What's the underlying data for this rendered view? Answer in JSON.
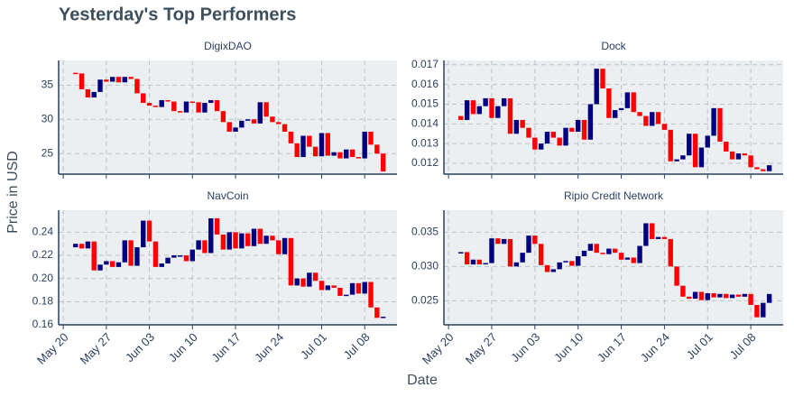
{
  "title": "Yesterday's Top Performers",
  "xlabel": "Date",
  "ylabel": "Price in USD",
  "chart_data": [
    {
      "type": "candlestick",
      "title": "DigixDAO",
      "increasing_color": "#000080",
      "decreasing_color": "#ff0000",
      "grid": true,
      "show_xticklabels": false,
      "categories": [
        "May 20",
        "May 21",
        "May 22",
        "May 23",
        "May 24",
        "May 25",
        "May 26",
        "May 27",
        "May 28",
        "May 29",
        "May 30",
        "May 31",
        "Jun 01",
        "Jun 02",
        "Jun 03",
        "Jun 04",
        "Jun 05",
        "Jun 06",
        "Jun 07",
        "Jun 08",
        "Jun 09",
        "Jun 10",
        "Jun 11",
        "Jun 12",
        "Jun 13",
        "Jun 14",
        "Jun 15",
        "Jun 16",
        "Jun 17",
        "Jun 18",
        "Jun 19",
        "Jun 20",
        "Jun 21",
        "Jun 22",
        "Jun 23",
        "Jun 24",
        "Jun 25",
        "Jun 26",
        "Jun 27",
        "Jun 28",
        "Jun 29",
        "Jun 30",
        "Jul 01",
        "Jul 02",
        "Jul 03",
        "Jul 04",
        "Jul 05",
        "Jul 06",
        "Jul 07",
        "Jul 08",
        "Jul 09",
        "Jul 10",
        "Jul 11"
      ],
      "open": [
        null,
        null,
        36.8,
        36.7,
        34.4,
        33.2,
        34.0,
        35.8,
        35.5,
        36.2,
        35.4,
        36.2,
        35.9,
        33.8,
        32.4,
        32.0,
        31.8,
        32.8,
        32.6,
        31.2,
        31.0,
        32.6,
        32.5,
        31.0,
        32.4,
        32.8,
        31.2,
        29.6,
        28.2,
        28.8,
        29.8,
        30.0,
        29.4,
        32.5,
        30.4,
        29.6,
        29.3,
        28.2,
        26.5,
        24.5,
        27.6,
        26.0,
        24.6,
        28.0,
        24.7,
        25.2,
        24.3,
        25.6,
        24.5,
        24.3,
        28.2,
        26.3,
        25.0
      ],
      "close": [
        null,
        null,
        36.7,
        34.4,
        33.2,
        34.0,
        35.8,
        35.5,
        36.2,
        35.4,
        36.2,
        35.9,
        33.8,
        32.4,
        32.0,
        31.8,
        32.8,
        32.6,
        31.2,
        31.0,
        32.6,
        32.5,
        31.0,
        32.4,
        32.8,
        31.2,
        29.6,
        28.2,
        28.8,
        29.8,
        30.0,
        29.4,
        32.5,
        30.4,
        29.6,
        29.3,
        28.2,
        26.5,
        24.5,
        27.6,
        26.0,
        24.6,
        28.0,
        24.7,
        25.2,
        24.3,
        25.6,
        24.5,
        24.3,
        28.2,
        26.3,
        25.0,
        22.4
      ],
      "ylim": [
        22,
        38.6
      ],
      "yticks": [
        25,
        30,
        35
      ],
      "xticks": [
        "May 20",
        "May 27",
        "Jun 03",
        "Jun 10",
        "Jun 17",
        "Jun 24",
        "Jul 01",
        "Jul 08"
      ]
    },
    {
      "type": "candlestick",
      "title": "Dock",
      "increasing_color": "#000080",
      "decreasing_color": "#ff0000",
      "grid": true,
      "show_xticklabels": false,
      "categories": [
        "May 20",
        "May 21",
        "May 22",
        "May 23",
        "May 24",
        "May 25",
        "May 26",
        "May 27",
        "May 28",
        "May 29",
        "May 30",
        "May 31",
        "Jun 01",
        "Jun 02",
        "Jun 03",
        "Jun 04",
        "Jun 05",
        "Jun 06",
        "Jun 07",
        "Jun 08",
        "Jun 09",
        "Jun 10",
        "Jun 11",
        "Jun 12",
        "Jun 13",
        "Jun 14",
        "Jun 15",
        "Jun 16",
        "Jun 17",
        "Jun 18",
        "Jun 19",
        "Jun 20",
        "Jun 21",
        "Jun 22",
        "Jun 23",
        "Jun 24",
        "Jun 25",
        "Jun 26",
        "Jun 27",
        "Jun 28",
        "Jun 29",
        "Jun 30",
        "Jul 01",
        "Jul 02",
        "Jul 03",
        "Jul 04",
        "Jul 05",
        "Jul 06",
        "Jul 07",
        "Jul 08",
        "Jul 09",
        "Jul 10",
        "Jul 11"
      ],
      "open": [
        null,
        null,
        0.0144,
        0.0142,
        0.0152,
        0.0145,
        0.0149,
        0.0153,
        0.0143,
        0.0149,
        0.0153,
        0.0135,
        0.0142,
        0.0138,
        0.0133,
        0.0127,
        0.013,
        0.0136,
        0.0133,
        0.0129,
        0.0138,
        0.0136,
        0.0142,
        0.0132,
        0.015,
        0.0168,
        0.0158,
        0.0143,
        0.0147,
        0.0148,
        0.0156,
        0.0146,
        0.0144,
        0.0139,
        0.0146,
        0.014,
        0.0137,
        0.0121,
        0.0122,
        0.0124,
        0.0135,
        0.0118,
        0.0128,
        0.0134,
        0.0148,
        0.0131,
        0.0126,
        0.0122,
        0.0125,
        0.0124,
        0.0118,
        0.0117,
        0.0116
      ],
      "close": [
        null,
        null,
        0.0142,
        0.0152,
        0.0145,
        0.0149,
        0.0153,
        0.0143,
        0.0149,
        0.0153,
        0.0135,
        0.0142,
        0.0138,
        0.0133,
        0.0127,
        0.013,
        0.0136,
        0.0133,
        0.0129,
        0.0138,
        0.0136,
        0.0142,
        0.0132,
        0.015,
        0.0168,
        0.0158,
        0.0143,
        0.0147,
        0.0148,
        0.0156,
        0.0146,
        0.0144,
        0.0139,
        0.0146,
        0.014,
        0.0137,
        0.0121,
        0.0122,
        0.0124,
        0.0135,
        0.0118,
        0.0128,
        0.0134,
        0.0148,
        0.0131,
        0.0126,
        0.0122,
        0.0125,
        0.0124,
        0.0118,
        0.0117,
        0.0116,
        0.0119
      ],
      "ylim": [
        0.01145,
        0.01722
      ],
      "yticks": [
        0.012,
        0.013,
        0.014,
        0.015,
        0.016,
        0.017
      ],
      "xticks": [
        "May 20",
        "May 27",
        "Jun 03",
        "Jun 10",
        "Jun 17",
        "Jun 24",
        "Jul 01",
        "Jul 08"
      ]
    },
    {
      "type": "candlestick",
      "title": "NavCoin",
      "increasing_color": "#000080",
      "decreasing_color": "#ff0000",
      "grid": true,
      "show_xticklabels": true,
      "categories": [
        "May 20",
        "May 21",
        "May 22",
        "May 23",
        "May 24",
        "May 25",
        "May 26",
        "May 27",
        "May 28",
        "May 29",
        "May 30",
        "May 31",
        "Jun 01",
        "Jun 02",
        "Jun 03",
        "Jun 04",
        "Jun 05",
        "Jun 06",
        "Jun 07",
        "Jun 08",
        "Jun 09",
        "Jun 10",
        "Jun 11",
        "Jun 12",
        "Jun 13",
        "Jun 14",
        "Jun 15",
        "Jun 16",
        "Jun 17",
        "Jun 18",
        "Jun 19",
        "Jun 20",
        "Jun 21",
        "Jun 22",
        "Jun 23",
        "Jun 24",
        "Jun 25",
        "Jun 26",
        "Jun 27",
        "Jun 28",
        "Jun 29",
        "Jun 30",
        "Jul 01",
        "Jul 02",
        "Jul 03",
        "Jul 04",
        "Jul 05",
        "Jul 06",
        "Jul 07",
        "Jul 08",
        "Jul 09",
        "Jul 10",
        "Jul 11"
      ],
      "open": [
        null,
        null,
        0.227,
        0.23,
        0.226,
        0.232,
        0.207,
        0.212,
        0.215,
        0.21,
        0.214,
        0.233,
        0.211,
        0.227,
        0.25,
        0.232,
        0.21,
        0.213,
        0.218,
        0.22,
        0.22,
        0.215,
        0.225,
        0.233,
        0.222,
        0.252,
        0.238,
        0.225,
        0.24,
        0.226,
        0.239,
        0.228,
        0.243,
        0.23,
        0.237,
        0.233,
        0.221,
        0.235,
        0.194,
        0.2,
        0.193,
        0.205,
        0.198,
        0.19,
        0.194,
        0.192,
        0.185,
        0.186,
        0.196,
        0.187,
        0.197,
        0.175,
        0.166
      ],
      "close": [
        null,
        null,
        0.23,
        0.226,
        0.232,
        0.207,
        0.212,
        0.215,
        0.21,
        0.214,
        0.233,
        0.211,
        0.227,
        0.25,
        0.232,
        0.21,
        0.213,
        0.218,
        0.22,
        0.22,
        0.215,
        0.225,
        0.233,
        0.222,
        0.252,
        0.238,
        0.225,
        0.24,
        0.226,
        0.239,
        0.228,
        0.243,
        0.23,
        0.237,
        0.233,
        0.221,
        0.235,
        0.194,
        0.2,
        0.193,
        0.205,
        0.198,
        0.19,
        0.194,
        0.192,
        0.185,
        0.186,
        0.196,
        0.187,
        0.197,
        0.175,
        0.166,
        0.167
      ],
      "ylim": [
        0.16,
        0.259
      ],
      "yticks": [
        0.16,
        0.18,
        {
          "value": 0.2,
          "label": "0.20"
        },
        0.22,
        0.24
      ],
      "xticks": [
        "May 20",
        "May 27",
        "Jun 03",
        "Jun 10",
        "Jun 17",
        "Jun 24",
        "Jul 01",
        "Jul 08"
      ]
    },
    {
      "type": "candlestick",
      "title": "Ripio Credit Network",
      "increasing_color": "#000080",
      "decreasing_color": "#ff0000",
      "grid": true,
      "show_xticklabels": true,
      "categories": [
        "May 20",
        "May 21",
        "May 22",
        "May 23",
        "May 24",
        "May 25",
        "May 26",
        "May 27",
        "May 28",
        "May 29",
        "May 30",
        "May 31",
        "Jun 01",
        "Jun 02",
        "Jun 03",
        "Jun 04",
        "Jun 05",
        "Jun 06",
        "Jun 07",
        "Jun 08",
        "Jun 09",
        "Jun 10",
        "Jun 11",
        "Jun 12",
        "Jun 13",
        "Jun 14",
        "Jun 15",
        "Jun 16",
        "Jun 17",
        "Jun 18",
        "Jun 19",
        "Jun 20",
        "Jun 21",
        "Jun 22",
        "Jun 23",
        "Jun 24",
        "Jun 25",
        "Jun 26",
        "Jun 27",
        "Jun 28",
        "Jun 29",
        "Jun 30",
        "Jul 01",
        "Jul 02",
        "Jul 03",
        "Jul 04",
        "Jul 05",
        "Jul 06",
        "Jul 07",
        "Jul 08",
        "Jul 09",
        "Jul 10",
        "Jul 11"
      ],
      "open": [
        null,
        null,
        0.0319,
        0.0321,
        0.0303,
        0.031,
        0.0303,
        0.0305,
        0.0341,
        0.0333,
        0.034,
        0.03,
        0.0306,
        0.032,
        0.0345,
        0.0333,
        0.0302,
        0.0292,
        0.0296,
        0.0306,
        0.0308,
        0.0301,
        0.0315,
        0.0323,
        0.0333,
        0.032,
        0.0318,
        0.0326,
        0.032,
        0.031,
        0.0313,
        0.0305,
        0.033,
        0.0363,
        0.034,
        0.0343,
        0.034,
        0.03,
        0.0272,
        0.0256,
        0.0253,
        0.0263,
        0.0251,
        0.0261,
        0.0255,
        0.026,
        0.0254,
        0.0259,
        0.0256,
        0.026,
        0.0244,
        0.0226,
        0.0247
      ],
      "close": [
        null,
        null,
        0.0321,
        0.0303,
        0.031,
        0.0303,
        0.0305,
        0.0341,
        0.0333,
        0.034,
        0.03,
        0.0306,
        0.032,
        0.0345,
        0.0333,
        0.0302,
        0.0292,
        0.0296,
        0.0306,
        0.0308,
        0.0301,
        0.0315,
        0.0323,
        0.0333,
        0.032,
        0.0318,
        0.0326,
        0.032,
        0.031,
        0.0313,
        0.0305,
        0.033,
        0.0363,
        0.034,
        0.0343,
        0.034,
        0.03,
        0.0272,
        0.0256,
        0.0253,
        0.0263,
        0.0251,
        0.0261,
        0.0255,
        0.026,
        0.0254,
        0.0259,
        0.0256,
        0.026,
        0.0244,
        0.0226,
        0.0247,
        0.026
      ],
      "ylim": [
        0.0215,
        0.0382
      ],
      "yticks": [
        0.025,
        {
          "value": 0.03,
          "label": "0.030"
        },
        0.035
      ],
      "xticks": [
        "May 20",
        "May 27",
        "Jun 03",
        "Jun 10",
        "Jun 17",
        "Jun 24",
        "Jul 01",
        "Jul 08"
      ]
    }
  ]
}
